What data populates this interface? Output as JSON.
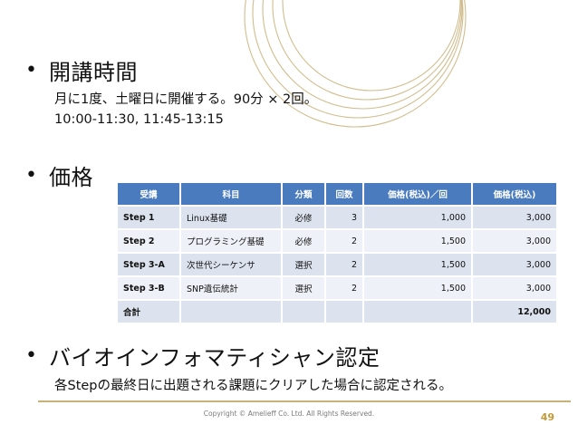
{
  "colors": {
    "header_bg": "#4a7bbf",
    "row_bg_a": "#dce3ee",
    "row_bg_b": "#eef1f7",
    "ring_gold": "#c9b27a",
    "page_number": "#c49a3a"
  },
  "section_hours": {
    "title": "開講時間",
    "line1": "月に1度、土曜日に開催する。90分 × 2回。",
    "line2": "10:00-11:30, 11:45-13:15"
  },
  "section_price": {
    "title": "価格",
    "table": {
      "headers": [
        "受講",
        "科目",
        "分類",
        "回数",
        "価格(税込)／回",
        "価格(税込)"
      ],
      "rows": [
        [
          "Step 1",
          "Linux基礎",
          "必修",
          "3",
          "1,000",
          "3,000"
        ],
        [
          "Step 2",
          "プログラミング基礎",
          "必修",
          "2",
          "1,500",
          "3,000"
        ],
        [
          "Step 3-A",
          "次世代シーケンサ",
          "選択",
          "2",
          "1,500",
          "3,000"
        ],
        [
          "Step 3-B",
          "SNP遺伝統計",
          "選択",
          "2",
          "1,500",
          "3,000"
        ]
      ],
      "total_label": "合計",
      "total_value": "12,000"
    }
  },
  "section_cert": {
    "title": "バイオインフォマティシャン認定",
    "line1": "各Stepの最終日に出題される課題にクリアした場合に認定される。"
  },
  "footer": {
    "copyright": "Copyright © Amelieff Co. Ltd. All Rights Reserved.",
    "page_number": "49"
  }
}
